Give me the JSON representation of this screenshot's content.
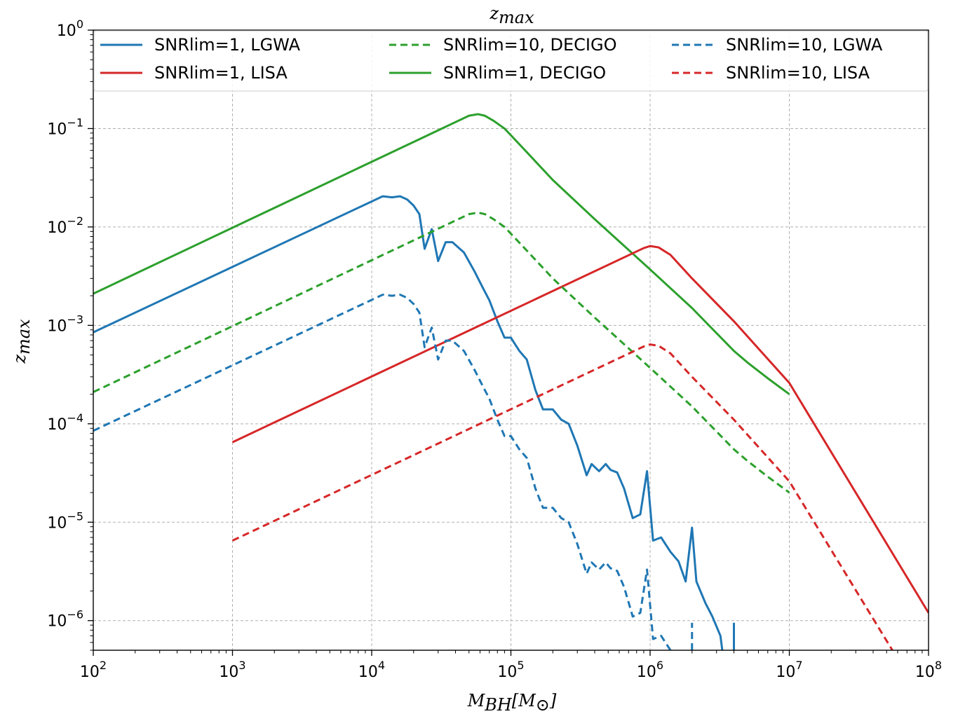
{
  "chart_data": {
    "type": "line",
    "title": "z_max",
    "title_main": "z",
    "title_sub": "max",
    "xlabel_main": "M",
    "xlabel_sub": "BH",
    "xlabel_bracket_open": "[M",
    "xlabel_bracket_sub": "⊙",
    "xlabel_bracket_close": "]",
    "ylabel_main": "z",
    "ylabel_sub": "max",
    "xscale": "log",
    "yscale": "log",
    "xlim": [
      100,
      100000000
    ],
    "ylim": [
      5e-07,
      1
    ],
    "grid": true,
    "legend_position": "top",
    "x_ticks": [
      {
        "base": "10",
        "exp": "2"
      },
      {
        "base": "10",
        "exp": "3"
      },
      {
        "base": "10",
        "exp": "4"
      },
      {
        "base": "10",
        "exp": "5"
      },
      {
        "base": "10",
        "exp": "6"
      },
      {
        "base": "10",
        "exp": "7"
      },
      {
        "base": "10",
        "exp": "8"
      }
    ],
    "y_ticks": [
      {
        "base": "10",
        "exp": "−6"
      },
      {
        "base": "10",
        "exp": "−5"
      },
      {
        "base": "10",
        "exp": "−4"
      },
      {
        "base": "10",
        "exp": "−3"
      },
      {
        "base": "10",
        "exp": "−2"
      },
      {
        "base": "10",
        "exp": "−1"
      },
      {
        "base": "10",
        "exp": "0"
      }
    ],
    "series": [
      {
        "name": "SNRlim=1, LGWA",
        "color": "#1f77b4",
        "dash": "solid",
        "points": [
          [
            100,
            0.00085
          ],
          [
            12000,
            0.0205
          ],
          [
            14000,
            0.02
          ],
          [
            16000,
            0.0205
          ],
          [
            18000,
            0.019
          ],
          [
            20000,
            0.0165
          ],
          [
            22000,
            0.0135
          ],
          [
            24000,
            0.006
          ],
          [
            27000,
            0.0095
          ],
          [
            30000,
            0.0045
          ],
          [
            34000,
            0.007
          ],
          [
            38000,
            0.007
          ],
          [
            46000,
            0.0055
          ],
          [
            55000,
            0.0035
          ],
          [
            62000,
            0.0025
          ],
          [
            70000,
            0.0018
          ],
          [
            80000,
            0.0011
          ],
          [
            90000,
            0.00075
          ],
          [
            100000,
            0.00075
          ],
          [
            115000,
            0.00055
          ],
          [
            130000,
            0.00045
          ],
          [
            150000,
            0.00022
          ],
          [
            170000,
            0.00014
          ],
          [
            200000,
            0.00014
          ],
          [
            230000,
            0.00011
          ],
          [
            260000,
            0.0001
          ],
          [
            300000,
            6e-05
          ],
          [
            350000,
            3e-05
          ],
          [
            380000,
            3.9e-05
          ],
          [
            430000,
            3.3e-05
          ],
          [
            480000,
            3.9e-05
          ],
          [
            520000,
            3.4e-05
          ],
          [
            580000,
            3.2e-05
          ],
          [
            650000,
            2.2e-05
          ],
          [
            750000,
            1.1e-05
          ],
          [
            850000,
            1.2e-05
          ],
          [
            950000,
            3.3e-05
          ],
          [
            1050000,
            6.5e-06
          ],
          [
            1200000,
            7e-06
          ],
          [
            1400000,
            5e-06
          ],
          [
            1600000,
            4e-06
          ],
          [
            1800000,
            2.5e-06
          ],
          [
            2000000,
            8.8e-06
          ],
          [
            2150000,
            2.5e-06
          ],
          [
            2500000,
            1.5e-06
          ],
          [
            2800000,
            1.1e-06
          ],
          [
            3200000,
            7e-07
          ],
          [
            3300000,
            5e-07
          ]
        ]
      },
      {
        "name": "SNRlim=1, DECIGO",
        "color": "#2ca02c",
        "dash": "solid",
        "points": [
          [
            100,
            0.0021
          ],
          [
            50000,
            0.135
          ],
          [
            58000,
            0.14
          ],
          [
            65000,
            0.135
          ],
          [
            75000,
            0.12
          ],
          [
            90000,
            0.1
          ],
          [
            120000,
            0.065
          ],
          [
            200000,
            0.03
          ],
          [
            400000,
            0.012
          ],
          [
            1000000,
            0.0037
          ],
          [
            2000000,
            0.0015
          ],
          [
            4000000,
            0.00055
          ],
          [
            5000000,
            0.00042
          ],
          [
            7000000,
            0.00029
          ],
          [
            10000000,
            0.0002
          ]
        ]
      },
      {
        "name": "SNRlim=1, LISA",
        "color": "#d62728",
        "dash": "solid",
        "points": [
          [
            1000,
            6.5e-05
          ],
          [
            900000,
            0.0061
          ],
          [
            1000000,
            0.0064
          ],
          [
            1150000,
            0.0062
          ],
          [
            1400000,
            0.0052
          ],
          [
            2000000,
            0.003
          ],
          [
            4000000,
            0.0011
          ],
          [
            10000000,
            0.00026
          ],
          [
            100000000,
            1.2e-06
          ]
        ]
      },
      {
        "name": "SNRlim=10, LGWA",
        "color": "#1f77b4",
        "dash": "dash",
        "points": [
          [
            100,
            8.5e-05
          ],
          [
            12000,
            0.00205
          ],
          [
            14000,
            0.002
          ],
          [
            16000,
            0.00205
          ],
          [
            18000,
            0.0019
          ],
          [
            20000,
            0.00165
          ],
          [
            22000,
            0.00135
          ],
          [
            24000,
            0.0006
          ],
          [
            27000,
            0.00095
          ],
          [
            30000,
            0.00045
          ],
          [
            34000,
            0.0007
          ],
          [
            38000,
            0.0007
          ],
          [
            46000,
            0.00055
          ],
          [
            55000,
            0.00035
          ],
          [
            62000,
            0.00025
          ],
          [
            70000,
            0.00018
          ],
          [
            80000,
            0.00011
          ],
          [
            90000,
            7.5e-05
          ],
          [
            100000,
            7.5e-05
          ],
          [
            115000,
            5.5e-05
          ],
          [
            130000,
            4.5e-05
          ],
          [
            150000,
            2.2e-05
          ],
          [
            170000,
            1.4e-05
          ],
          [
            200000,
            1.4e-05
          ],
          [
            230000,
            1.1e-05
          ],
          [
            260000,
            1e-05
          ],
          [
            300000,
            6e-06
          ],
          [
            350000,
            3e-06
          ],
          [
            380000,
            3.9e-06
          ],
          [
            430000,
            3.3e-06
          ],
          [
            480000,
            3.9e-06
          ],
          [
            520000,
            3.4e-06
          ],
          [
            580000,
            3.2e-06
          ],
          [
            650000,
            2.2e-06
          ],
          [
            750000,
            1.1e-06
          ],
          [
            850000,
            1.2e-06
          ],
          [
            950000,
            3.3e-06
          ],
          [
            1050000,
            6.5e-07
          ],
          [
            1200000,
            7e-07
          ],
          [
            1400000,
            5e-07
          ]
        ]
      },
      {
        "name": "SNRlim=10, DECIGO",
        "color": "#2ca02c",
        "dash": "dash",
        "points": [
          [
            100,
            0.00021
          ],
          [
            50000,
            0.0135
          ],
          [
            58000,
            0.014
          ],
          [
            65000,
            0.0135
          ],
          [
            75000,
            0.012
          ],
          [
            90000,
            0.01
          ],
          [
            120000,
            0.0065
          ],
          [
            200000,
            0.003
          ],
          [
            400000,
            0.0012
          ],
          [
            1000000,
            0.00037
          ],
          [
            2000000,
            0.00015
          ],
          [
            4000000,
            5.5e-05
          ],
          [
            5000000,
            4.2e-05
          ],
          [
            7000000,
            2.9e-05
          ],
          [
            10000000,
            2e-05
          ]
        ]
      },
      {
        "name": "SNRlim=10, LISA",
        "color": "#d62728",
        "dash": "dash",
        "points": [
          [
            1000,
            6.5e-06
          ],
          [
            900000,
            0.00061
          ],
          [
            1000000,
            0.00064
          ],
          [
            1150000,
            0.00062
          ],
          [
            1400000,
            0.00052
          ],
          [
            2000000,
            0.0003
          ],
          [
            4000000,
            0.00011
          ],
          [
            10000000,
            2.6e-05
          ],
          [
            55000000,
            5e-07
          ]
        ]
      }
    ],
    "extra_spikes": [
      {
        "series_index": 0,
        "x": [
          4000000,
          4000000
        ],
        "y": [
          5e-07,
          9.5e-07
        ]
      },
      {
        "series_index": 3,
        "x": [
          2000000,
          2000000
        ],
        "y": [
          5e-07,
          9.5e-07
        ]
      }
    ],
    "legend": {
      "columns": 3,
      "entries_order": [
        0,
        2,
        4,
        1,
        3,
        5
      ]
    }
  }
}
